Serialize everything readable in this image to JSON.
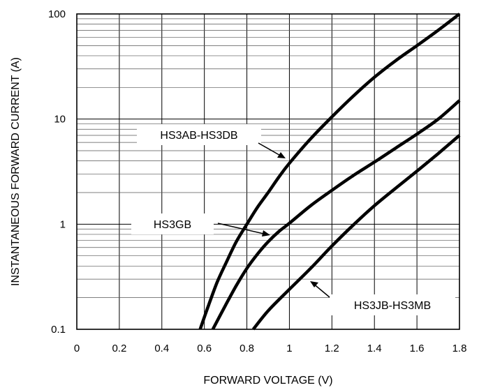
{
  "chart_data": {
    "type": "line",
    "title": "",
    "xlabel": "FORWARD VOLTAGE (V)",
    "ylabel": "INSTANTANEOUS FORWARD CURRENT (A)",
    "xlim": [
      0,
      1.8
    ],
    "ylim": [
      0.1,
      100
    ],
    "y_scale": "log",
    "grid": true,
    "x_ticks": [
      "0",
      "0.2",
      "0.4",
      "0.6",
      "0.8",
      "1",
      "1.2",
      "1.4",
      "1.6",
      "1.8"
    ],
    "y_ticks": [
      "0.1",
      "1",
      "10",
      "100"
    ],
    "series": [
      {
        "name": "HS3AB-HS3DB",
        "x": [
          0.58,
          0.62,
          0.66,
          0.7,
          0.75,
          0.8,
          0.85,
          0.9,
          0.95,
          1.0,
          1.1,
          1.2,
          1.3,
          1.4,
          1.5,
          1.6,
          1.7,
          1.8
        ],
        "y": [
          0.1,
          0.17,
          0.28,
          0.42,
          0.68,
          1.0,
          1.45,
          2.0,
          2.8,
          3.8,
          6.5,
          10.5,
          16.5,
          25.0,
          36.0,
          50.0,
          70.0,
          100.0
        ]
      },
      {
        "name": "HS3GB",
        "x": [
          0.64,
          0.7,
          0.75,
          0.8,
          0.85,
          0.9,
          0.95,
          1.0,
          1.1,
          1.2,
          1.3,
          1.4,
          1.5,
          1.6,
          1.7,
          1.8
        ],
        "y": [
          0.1,
          0.17,
          0.26,
          0.38,
          0.52,
          0.68,
          0.85,
          1.02,
          1.5,
          2.1,
          2.9,
          3.9,
          5.3,
          7.2,
          10.0,
          15.0
        ]
      },
      {
        "name": "HS3JB-HS3MB",
        "x": [
          0.83,
          0.9,
          1.0,
          1.1,
          1.2,
          1.3,
          1.4,
          1.5,
          1.6,
          1.7,
          1.8
        ],
        "y": [
          0.1,
          0.15,
          0.24,
          0.38,
          0.62,
          0.98,
          1.5,
          2.2,
          3.2,
          4.7,
          7.0
        ]
      }
    ],
    "annotations": [
      {
        "text": "HS3AB-HS3DB",
        "series": "HS3AB-HS3DB"
      },
      {
        "text": "HS3GB",
        "series": "HS3GB"
      },
      {
        "text": "HS3JB-HS3MB",
        "series": "HS3JB-HS3MB"
      }
    ]
  }
}
